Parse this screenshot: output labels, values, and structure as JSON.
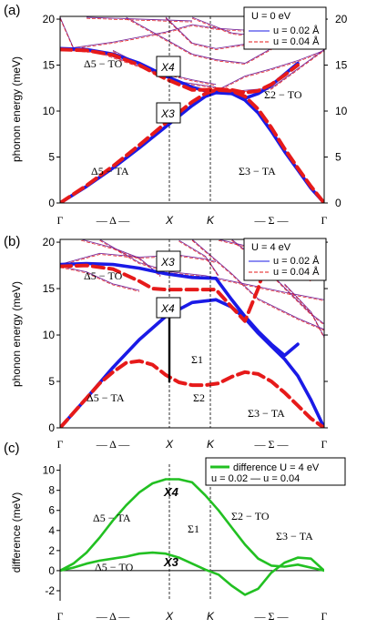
{
  "colors": {
    "blue": "#1a1ae6",
    "red": "#e61a1a",
    "purple": "#7a2a9a",
    "green": "#22c022",
    "axis": "#000000",
    "guide": "#000000"
  },
  "ticks": {
    "x": [
      "Γ",
      "— Δ —",
      "X",
      "K",
      "— Σ —",
      "Γ"
    ],
    "y_top": [
      "0",
      "5",
      "10",
      "15",
      "20"
    ],
    "y_c": [
      "-2",
      "0",
      "2",
      "4",
      "6",
      "8",
      "10"
    ]
  },
  "panels": [
    {
      "id": "a",
      "label": "(a)",
      "ylabel": "phonon energy (meV)",
      "legend": {
        "title": "U = 0 eV",
        "line1": "u = 0.02 Å",
        "line2": "u = 0.04 Å"
      },
      "annotations": {
        "x4": "X4",
        "x3": "X3",
        "d5to": "Δ5 − TO",
        "s2to": "Σ2 − TO",
        "d5ta": "Δ5 − TA",
        "s3ta": "Σ3 − TA"
      }
    },
    {
      "id": "b",
      "label": "(b)",
      "ylabel": "phonon energy (meV)",
      "legend": {
        "title": "U = 4 eV",
        "line1": "u = 0.02 Å",
        "line2": "u = 0.04 Å"
      },
      "annotations": {
        "x3": "X3",
        "x4": "X4",
        "d5to": "Δ5 − TO",
        "s1": "Σ1",
        "s2": "Σ2",
        "d5ta": "Δ5 − TA",
        "s3ta": "Σ3 − TA"
      }
    },
    {
      "id": "c",
      "label": "(c)",
      "ylabel": "difference (meV)",
      "legend": {
        "line1": "difference  U = 4 eV",
        "line2": "u = 0.02 — u = 0.04"
      },
      "annotations": {
        "x4": "X4",
        "x3": "X3",
        "d5ta": "Δ5 − TA",
        "s2to": "Σ2 − TO",
        "s1": "Σ1",
        "s3ta": "Σ3 − TA",
        "d5to": "Δ5 − TO"
      }
    }
  ],
  "chart_data": [
    {
      "type": "line",
      "panel": "a",
      "ylim": [
        0,
        20
      ],
      "x_ticks": [
        "Γ",
        "X",
        "K",
        "Γ"
      ],
      "series": [
        {
          "name": "u = 0.02 Å",
          "style": "thick-blue",
          "x": [
            0,
            0.1,
            0.2,
            0.3,
            0.4,
            0.5,
            0.55,
            0.59,
            0.65,
            0.7,
            0.75,
            0.8,
            0.85,
            0.9,
            0.95,
            1
          ],
          "y": [
            0,
            1.8,
            3.8,
            6.0,
            8.3,
            10.6,
            11.6,
            12.0,
            11.9,
            11.2,
            9.8,
            7.8,
            5.6,
            3.6,
            1.6,
            0
          ]
        },
        {
          "name": "u = 0.02 Å",
          "style": "thick-blue",
          "x": [
            0,
            0.1,
            0.2,
            0.3,
            0.4,
            0.5,
            0.55,
            0.59,
            0.65,
            0.7,
            0.75,
            0.8,
            0.85,
            0.9
          ],
          "y": [
            16.8,
            16.7,
            16.2,
            15.2,
            13.8,
            12.6,
            12.2,
            12.1,
            11.9,
            11.4,
            11.9,
            12.8,
            14.0,
            15.2
          ]
        },
        {
          "name": "u = 0.04 Å",
          "style": "thick-red-dash",
          "x": [
            0,
            0.1,
            0.2,
            0.3,
            0.4,
            0.5,
            0.55,
            0.59,
            0.65,
            0.7,
            0.75,
            0.8,
            0.85,
            0.9,
            0.95,
            1
          ],
          "y": [
            0,
            1.9,
            4.0,
            6.3,
            8.7,
            11.0,
            11.9,
            12.3,
            12.2,
            11.6,
            10.2,
            8.2,
            5.9,
            3.8,
            1.8,
            0
          ]
        },
        {
          "name": "u = 0.04 Å",
          "style": "thick-red-dash",
          "x": [
            0,
            0.1,
            0.2,
            0.3,
            0.4,
            0.5,
            0.55,
            0.59,
            0.65,
            0.7,
            0.75,
            0.8,
            0.85,
            0.9
          ],
          "y": [
            16.7,
            16.6,
            16.1,
            15.0,
            13.5,
            12.3,
            12.3,
            12.4,
            12.3,
            12.0,
            12.2,
            12.9,
            13.9,
            15.0
          ]
        }
      ]
    },
    {
      "type": "line",
      "panel": "b",
      "ylim": [
        0,
        20
      ],
      "x_ticks": [
        "Γ",
        "X",
        "K",
        "Γ"
      ],
      "series": [
        {
          "name": "u = 0.02 Å",
          "style": "thick-blue",
          "x": [
            0,
            0.1,
            0.2,
            0.3,
            0.4,
            0.5,
            0.59
          ],
          "y": [
            0,
            3.2,
            6.5,
            9.5,
            12.0,
            13.5,
            13.8
          ]
        },
        {
          "name": "u = 0.02 Å",
          "style": "thick-blue",
          "x": [
            0,
            0.1,
            0.2,
            0.3,
            0.4,
            0.5,
            0.59
          ],
          "y": [
            17.6,
            17.7,
            17.6,
            17.2,
            16.6,
            16.2,
            16.1
          ]
        },
        {
          "name": "u = 0.02 Å",
          "style": "thick-blue",
          "x": [
            0.59,
            0.65,
            0.7,
            0.75,
            0.8,
            0.85,
            0.9,
            0.95,
            1
          ],
          "y": [
            13.8,
            13.0,
            11.8,
            10.2,
            8.8,
            7.4,
            5.6,
            3.0,
            0
          ]
        },
        {
          "name": "u = 0.02 Å",
          "style": "thick-blue",
          "x": [
            0.59,
            0.65,
            0.7,
            0.75,
            0.8,
            0.85,
            0.9
          ],
          "y": [
            16.1,
            13.8,
            12.0,
            10.4,
            9.0,
            7.8,
            9.0
          ]
        },
        {
          "name": "u = 0.04 Å",
          "style": "thick-red-dash",
          "x": [
            0,
            0.05,
            0.1,
            0.15,
            0.2,
            0.25,
            0.3,
            0.35,
            0.4,
            0.45,
            0.5,
            0.55,
            0.6,
            0.65,
            0.7,
            0.75,
            0.8,
            0.85,
            0.9,
            0.95,
            1
          ],
          "y": [
            0,
            1.6,
            3.2,
            4.8,
            6.0,
            7.0,
            7.2,
            6.8,
            5.7,
            4.9,
            4.6,
            4.6,
            4.8,
            5.5,
            6.0,
            5.8,
            5.0,
            3.8,
            2.4,
            1.0,
            0
          ]
        },
        {
          "name": "u = 0.04 Å",
          "style": "thick-red-dash",
          "x": [
            0,
            0.1,
            0.2,
            0.3,
            0.35,
            0.4,
            0.5,
            0.59,
            0.65,
            0.7,
            0.75,
            0.78,
            0.82
          ],
          "y": [
            17.4,
            17.5,
            17.1,
            15.8,
            15.0,
            14.9,
            14.9,
            14.9,
            13.0,
            11.5,
            15.0,
            17.8,
            18.5
          ]
        }
      ]
    },
    {
      "type": "line",
      "panel": "c",
      "ylim": [
        -3,
        10
      ],
      "x_ticks": [
        "Γ",
        "X",
        "K",
        "Γ"
      ],
      "series": [
        {
          "name": "difference U = 4 eV",
          "style": "green",
          "x": [
            0,
            0.05,
            0.1,
            0.15,
            0.2,
            0.25,
            0.3,
            0.35,
            0.4,
            0.45,
            0.5,
            0.55,
            0.6,
            0.65,
            0.7,
            0.75,
            0.8,
            0.85,
            0.9,
            0.95,
            1
          ],
          "y": [
            0,
            0.7,
            1.8,
            3.3,
            5.0,
            6.5,
            7.8,
            8.7,
            9.1,
            9.1,
            8.8,
            7.5,
            6.0,
            4.3,
            2.6,
            1.2,
            0.5,
            0.4,
            0.6,
            0.3,
            0
          ]
        },
        {
          "name": "difference U = 4 eV",
          "style": "green",
          "x": [
            0,
            0.05,
            0.1,
            0.15,
            0.2,
            0.25,
            0.3,
            0.35,
            0.4,
            0.45,
            0.5,
            0.55,
            0.6,
            0.65,
            0.7,
            0.75,
            0.8,
            0.85,
            0.9,
            0.95,
            1
          ],
          "y": [
            0,
            0.3,
            0.7,
            1.0,
            1.2,
            1.4,
            1.7,
            1.8,
            1.7,
            1.3,
            0.7,
            0.1,
            -0.4,
            -1.5,
            -2.4,
            -1.8,
            -0.2,
            0.8,
            1.3,
            1.2,
            0
          ]
        }
      ]
    }
  ]
}
